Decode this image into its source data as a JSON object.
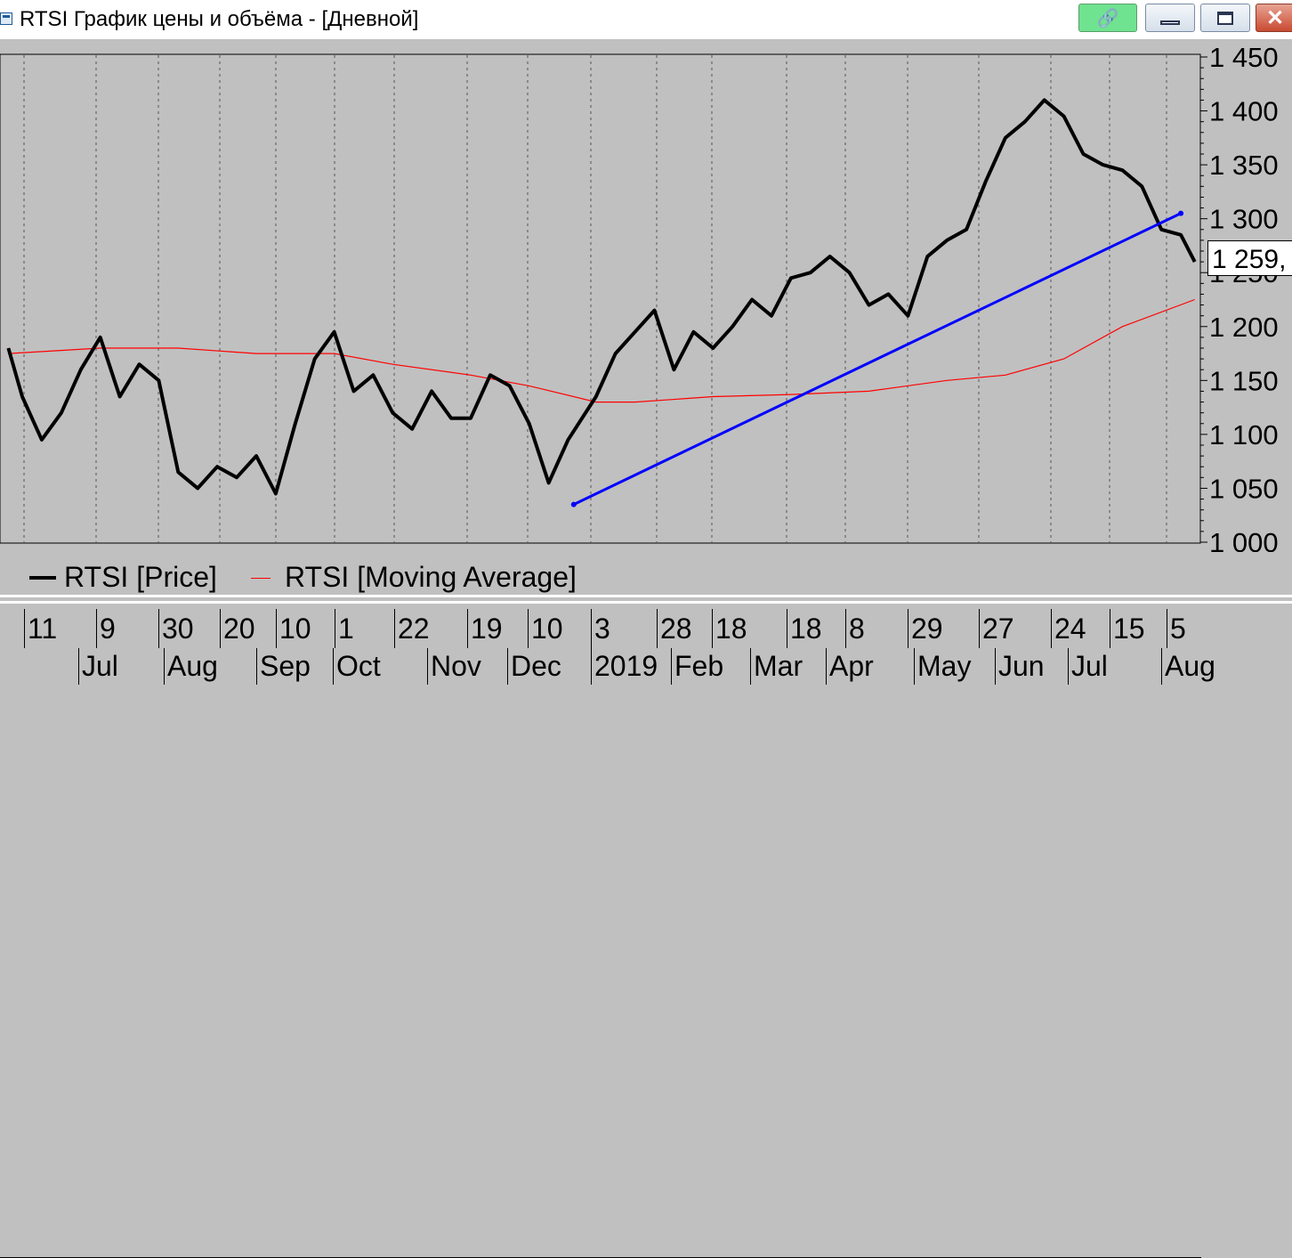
{
  "window": {
    "title": "RTSI График цены и объёма - [Дневной]",
    "link_icon": "chain-link-icon",
    "link_glyph": "🔗",
    "close_glyph": "✕"
  },
  "price_label": "1 259,",
  "chart_data": {
    "type": "line",
    "ylim": [
      1000,
      1450
    ],
    "y_ticks": [
      "1 450",
      "1 400",
      "1 350",
      "1 300",
      "1 250",
      "1 200",
      "1 150",
      "1 100",
      "1 050",
      "1 000"
    ],
    "y_tick_values": [
      1450,
      1400,
      1350,
      1300,
      1250,
      1200,
      1150,
      1100,
      1050,
      1000
    ],
    "grid": "vertical dotted",
    "legend_position": "bottom-left",
    "x_labels_days": [
      "11",
      "9",
      "30",
      "20",
      "10",
      "1",
      "22",
      "19",
      "10",
      "3",
      "28",
      "18",
      "18",
      "8",
      "29",
      "27",
      "24",
      "15",
      "5"
    ],
    "x_labels_months": [
      "Jul",
      "Aug",
      "Sep",
      "Oct",
      "Nov",
      "Dec",
      "2019",
      "Feb",
      "Mar",
      "Apr",
      "May",
      "Jun",
      "Jul",
      "Aug"
    ],
    "series": [
      {
        "name": "RTSI [Price]",
        "color": "#000000",
        "x": [
          "2018-06-06",
          "2018-06-11",
          "2018-06-18",
          "2018-06-25",
          "2018-07-02",
          "2018-07-09",
          "2018-07-16",
          "2018-07-23",
          "2018-07-30",
          "2018-08-06",
          "2018-08-13",
          "2018-08-20",
          "2018-08-27",
          "2018-09-03",
          "2018-09-10",
          "2018-09-17",
          "2018-09-24",
          "2018-10-01",
          "2018-10-08",
          "2018-10-15",
          "2018-10-22",
          "2018-10-29",
          "2018-11-05",
          "2018-11-12",
          "2018-11-19",
          "2018-11-26",
          "2018-12-03",
          "2018-12-10",
          "2018-12-17",
          "2018-12-24",
          "2019-01-03",
          "2019-01-10",
          "2019-01-17",
          "2019-01-24",
          "2019-01-31",
          "2019-02-07",
          "2019-02-14",
          "2019-02-21",
          "2019-02-28",
          "2019-03-07",
          "2019-03-14",
          "2019-03-21",
          "2019-03-28",
          "2019-04-04",
          "2019-04-11",
          "2019-04-18",
          "2019-04-25",
          "2019-05-02",
          "2019-05-09",
          "2019-05-16",
          "2019-05-23",
          "2019-05-30",
          "2019-06-06",
          "2019-06-13",
          "2019-06-20",
          "2019-06-27",
          "2019-07-04",
          "2019-07-11",
          "2019-07-18",
          "2019-07-25",
          "2019-08-01",
          "2019-08-06"
        ],
        "values": [
          1180,
          1135,
          1095,
          1120,
          1160,
          1190,
          1135,
          1165,
          1150,
          1065,
          1050,
          1070,
          1060,
          1080,
          1045,
          1110,
          1170,
          1195,
          1140,
          1155,
          1120,
          1105,
          1140,
          1115,
          1115,
          1155,
          1145,
          1110,
          1055,
          1095,
          1135,
          1175,
          1195,
          1215,
          1160,
          1195,
          1180,
          1200,
          1225,
          1210,
          1245,
          1250,
          1265,
          1250,
          1220,
          1230,
          1210,
          1265,
          1280,
          1290,
          1335,
          1375,
          1390,
          1410,
          1395,
          1360,
          1350,
          1345,
          1330,
          1290,
          1285,
          1260
        ]
      },
      {
        "name": "RTSI [Moving Average]",
        "color": "#ff0000",
        "x": [
          "2018-06-06",
          "2018-07-09",
          "2018-08-06",
          "2018-09-03",
          "2018-10-01",
          "2018-10-22",
          "2018-11-19",
          "2018-12-10",
          "2019-01-03",
          "2019-01-17",
          "2019-02-14",
          "2019-03-14",
          "2019-04-11",
          "2019-05-09",
          "2019-05-30",
          "2019-06-20",
          "2019-07-11",
          "2019-08-06"
        ],
        "values": [
          1175,
          1180,
          1180,
          1175,
          1175,
          1165,
          1155,
          1145,
          1130,
          1130,
          1135,
          1137,
          1140,
          1150,
          1155,
          1170,
          1200,
          1225
        ]
      },
      {
        "name": "trend line",
        "color": "#0000ff",
        "x": [
          "2018-12-26",
          "2019-08-01"
        ],
        "values": [
          1035,
          1305
        ]
      }
    ]
  },
  "legend": {
    "price_label": "RTSI [Price]",
    "ma_label": "RTSI [Moving Average]"
  },
  "time_axis": {
    "days": [
      "11",
      "9",
      "30",
      "20",
      "10",
      "1",
      "22",
      "19",
      "10",
      "3",
      "28",
      "18",
      "18",
      "8",
      "29",
      "27",
      "24",
      "15",
      "5"
    ],
    "months": [
      "Jul",
      "Aug",
      "Sep",
      "Oct",
      "Nov",
      "Dec",
      "2019",
      "Feb",
      "Mar",
      "Apr",
      "May",
      "Jun",
      "Jul",
      "Aug"
    ]
  }
}
